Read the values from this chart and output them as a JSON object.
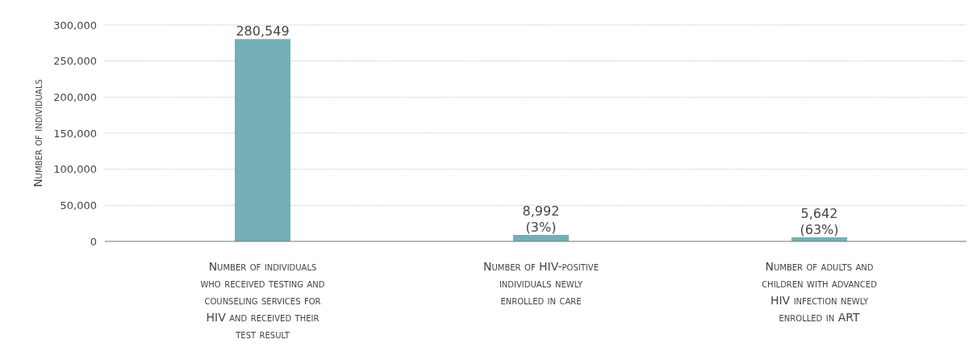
{
  "chart_data": {
    "type": "bar",
    "categories": [
      "Number of individuals who received testing and counseling services for HIV and received their test result",
      "Number of HIV-positive individuals newly enrolled in care",
      "Number of adults and children with advanced HIV infection newly enrolled in ART"
    ],
    "values": [
      280549,
      8992,
      5642
    ],
    "value_labels": [
      "280,549",
      "8,992 (3%)",
      "5,642 (63%)"
    ],
    "color": "#74afb6",
    "ylabel": "Number of individuals",
    "ylim": [
      0,
      300000
    ],
    "yticks": [
      {
        "value": 0,
        "label": "0"
      },
      {
        "value": 50000,
        "label": "50,000"
      },
      {
        "value": 100000,
        "label": "100,000"
      },
      {
        "value": 150000,
        "label": "150,000"
      },
      {
        "value": 200000,
        "label": "200,000"
      },
      {
        "value": 250000,
        "label": "250,000"
      },
      {
        "value": 300000,
        "label": "300,000"
      }
    ],
    "grid": "y"
  }
}
